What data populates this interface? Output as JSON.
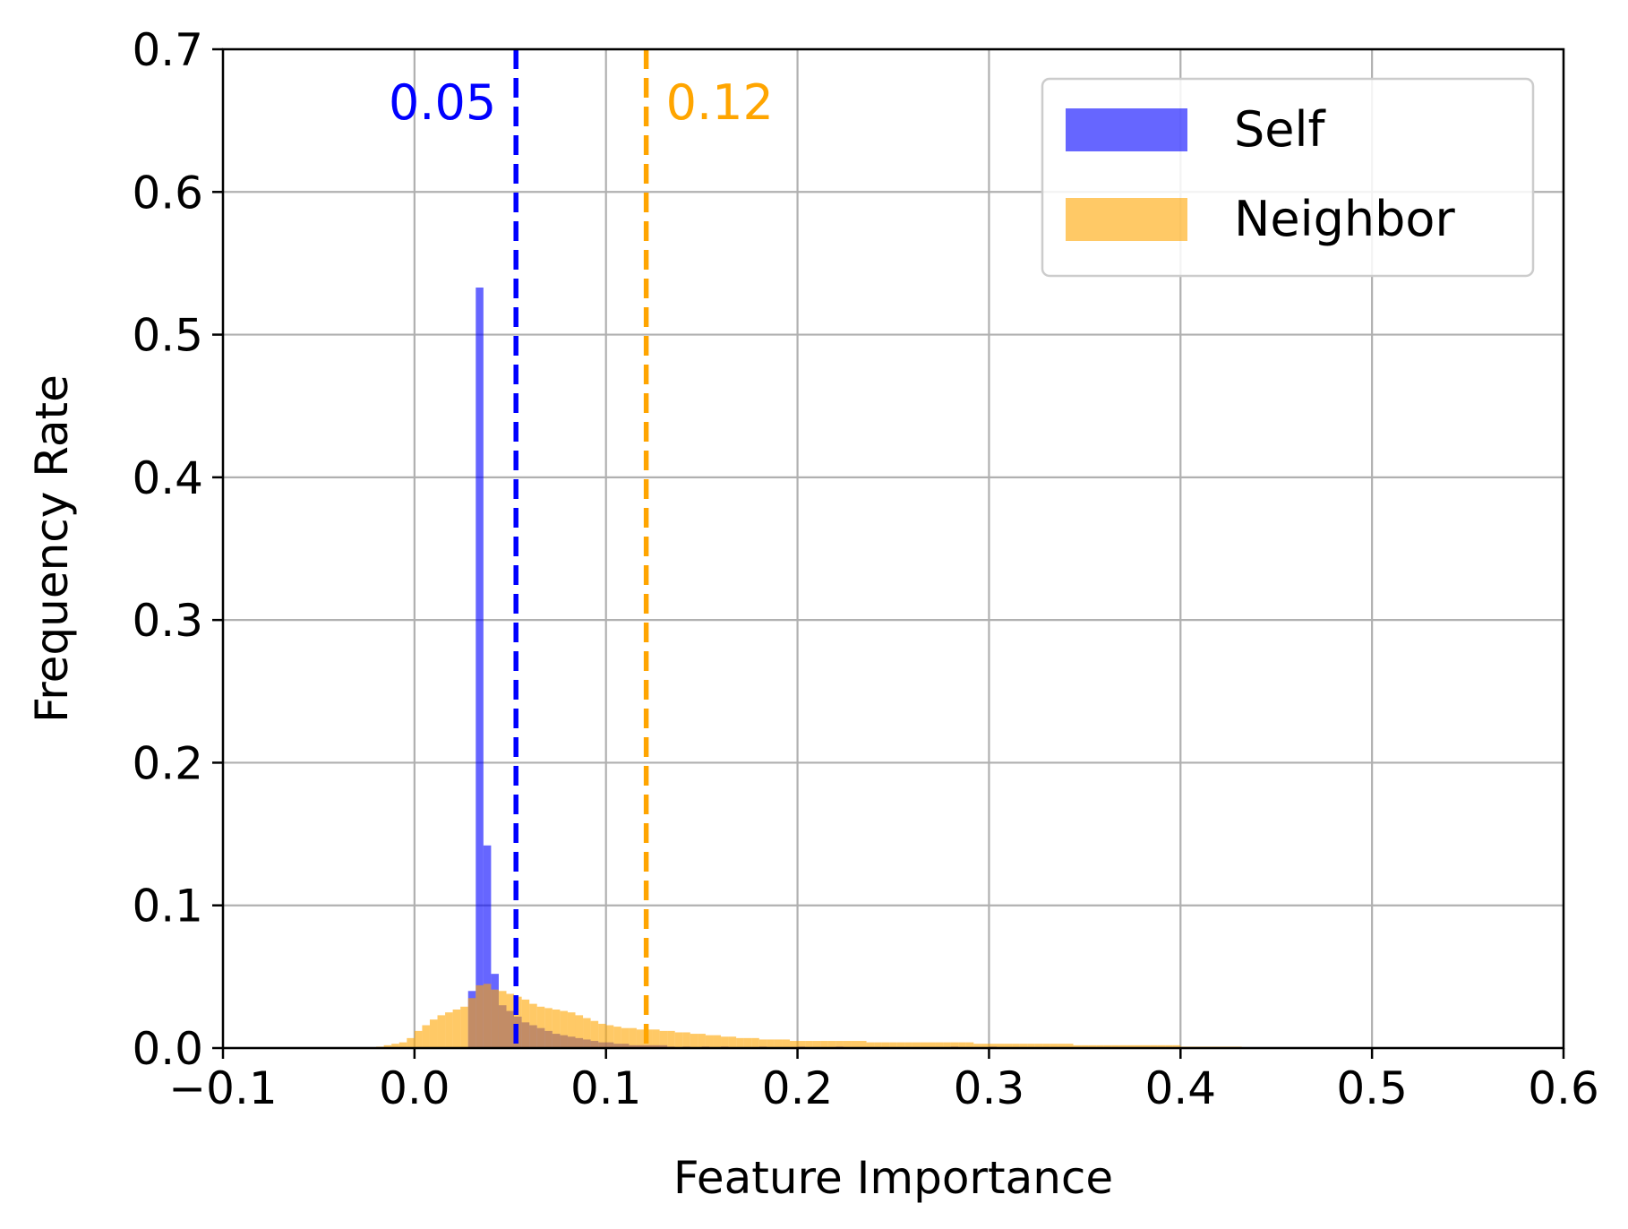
{
  "chart_data": {
    "type": "histogram",
    "title": "",
    "xlabel": "Feature Importance",
    "ylabel": "Frequency Rate",
    "xlim": [
      -0.1,
      0.6
    ],
    "ylim": [
      0,
      0.7
    ],
    "xticks": [
      -0.1,
      0.0,
      0.1,
      0.2,
      0.3,
      0.4,
      0.5,
      0.6
    ],
    "xtick_labels": [
      "−0.1",
      "0.0",
      "0.1",
      "0.2",
      "0.3",
      "0.4",
      "0.5",
      "0.6"
    ],
    "yticks": [
      0.0,
      0.1,
      0.2,
      0.3,
      0.4,
      0.5,
      0.6,
      0.7
    ],
    "ytick_labels": [
      "0.0",
      "0.1",
      "0.2",
      "0.3",
      "0.4",
      "0.5",
      "0.6",
      "0.7"
    ],
    "grid": true,
    "legend_position": "top-right",
    "bin_width": 0.004,
    "series": [
      {
        "name": "Self",
        "color": "#0000ff",
        "opacity": 0.6,
        "bins": [
          [
            0.028,
            0.04
          ],
          [
            0.032,
            0.533
          ],
          [
            0.036,
            0.142
          ],
          [
            0.04,
            0.052
          ],
          [
            0.044,
            0.03
          ],
          [
            0.048,
            0.026
          ],
          [
            0.052,
            0.022
          ],
          [
            0.056,
            0.018
          ],
          [
            0.06,
            0.016
          ],
          [
            0.064,
            0.014
          ],
          [
            0.068,
            0.012
          ],
          [
            0.072,
            0.01
          ],
          [
            0.076,
            0.009
          ],
          [
            0.08,
            0.008
          ],
          [
            0.084,
            0.007
          ],
          [
            0.088,
            0.006
          ],
          [
            0.092,
            0.005
          ],
          [
            0.096,
            0.004
          ],
          [
            0.1,
            0.004
          ],
          [
            0.104,
            0.003
          ],
          [
            0.108,
            0.003
          ],
          [
            0.112,
            0.002
          ],
          [
            0.116,
            0.002
          ],
          [
            0.12,
            0.002
          ],
          [
            0.124,
            0.002
          ],
          [
            0.128,
            0.002
          ],
          [
            0.132,
            0.001
          ],
          [
            0.14,
            0.001
          ],
          [
            0.15,
            0.001
          ],
          [
            0.16,
            0.001
          ],
          [
            0.18,
            0.001
          ],
          [
            0.2,
            0.001
          ],
          [
            0.22,
            0.001
          ],
          [
            0.28,
            0.001
          ],
          [
            0.3,
            0.001
          ],
          [
            0.4,
            0.0005
          ]
        ]
      },
      {
        "name": "Neighbor",
        "color": "#ffa500",
        "opacity": 0.6,
        "bins": [
          [
            -0.02,
            0.001
          ],
          [
            -0.016,
            0.002
          ],
          [
            -0.012,
            0.003
          ],
          [
            -0.008,
            0.004
          ],
          [
            -0.004,
            0.007
          ],
          [
            0.0,
            0.012
          ],
          [
            0.004,
            0.016
          ],
          [
            0.008,
            0.02
          ],
          [
            0.012,
            0.023
          ],
          [
            0.016,
            0.025
          ],
          [
            0.02,
            0.027
          ],
          [
            0.024,
            0.029
          ],
          [
            0.028,
            0.035
          ],
          [
            0.032,
            0.044
          ],
          [
            0.036,
            0.045
          ],
          [
            0.04,
            0.041
          ],
          [
            0.044,
            0.04
          ],
          [
            0.048,
            0.038
          ],
          [
            0.052,
            0.036
          ],
          [
            0.056,
            0.034
          ],
          [
            0.06,
            0.031
          ],
          [
            0.064,
            0.029
          ],
          [
            0.068,
            0.028
          ],
          [
            0.072,
            0.027
          ],
          [
            0.076,
            0.026
          ],
          [
            0.08,
            0.025
          ],
          [
            0.084,
            0.023
          ],
          [
            0.088,
            0.021
          ],
          [
            0.092,
            0.019
          ],
          [
            0.096,
            0.017
          ],
          [
            0.1,
            0.016
          ],
          [
            0.104,
            0.015
          ],
          [
            0.108,
            0.014
          ],
          [
            0.112,
            0.014
          ],
          [
            0.116,
            0.013
          ],
          [
            0.12,
            0.013
          ],
          [
            0.124,
            0.013
          ],
          [
            0.128,
            0.012
          ],
          [
            0.132,
            0.012
          ],
          [
            0.136,
            0.011
          ],
          [
            0.14,
            0.011
          ],
          [
            0.144,
            0.01
          ],
          [
            0.148,
            0.01
          ],
          [
            0.152,
            0.009
          ],
          [
            0.156,
            0.009
          ],
          [
            0.16,
            0.008
          ],
          [
            0.164,
            0.008
          ],
          [
            0.168,
            0.007
          ],
          [
            0.172,
            0.007
          ],
          [
            0.176,
            0.007
          ],
          [
            0.18,
            0.006
          ],
          [
            0.184,
            0.006
          ],
          [
            0.188,
            0.006
          ],
          [
            0.192,
            0.006
          ],
          [
            0.196,
            0.005
          ],
          [
            0.2,
            0.005
          ],
          [
            0.204,
            0.005
          ],
          [
            0.208,
            0.005
          ],
          [
            0.212,
            0.005
          ],
          [
            0.216,
            0.005
          ],
          [
            0.22,
            0.005
          ],
          [
            0.224,
            0.005
          ],
          [
            0.228,
            0.005
          ],
          [
            0.232,
            0.005
          ],
          [
            0.236,
            0.004
          ],
          [
            0.24,
            0.004
          ],
          [
            0.244,
            0.004
          ],
          [
            0.248,
            0.004
          ],
          [
            0.252,
            0.004
          ],
          [
            0.256,
            0.004
          ],
          [
            0.26,
            0.004
          ],
          [
            0.264,
            0.004
          ],
          [
            0.268,
            0.004
          ],
          [
            0.272,
            0.004
          ],
          [
            0.276,
            0.004
          ],
          [
            0.28,
            0.004
          ],
          [
            0.284,
            0.004
          ],
          [
            0.288,
            0.004
          ],
          [
            0.292,
            0.003
          ],
          [
            0.296,
            0.003
          ],
          [
            0.3,
            0.003
          ],
          [
            0.304,
            0.003
          ],
          [
            0.308,
            0.003
          ],
          [
            0.312,
            0.003
          ],
          [
            0.316,
            0.003
          ],
          [
            0.32,
            0.003
          ],
          [
            0.324,
            0.003
          ],
          [
            0.328,
            0.003
          ],
          [
            0.332,
            0.003
          ],
          [
            0.336,
            0.003
          ],
          [
            0.34,
            0.003
          ],
          [
            0.344,
            0.002
          ],
          [
            0.348,
            0.002
          ],
          [
            0.352,
            0.002
          ],
          [
            0.356,
            0.002
          ],
          [
            0.36,
            0.002
          ],
          [
            0.364,
            0.002
          ],
          [
            0.368,
            0.002
          ],
          [
            0.372,
            0.002
          ],
          [
            0.376,
            0.002
          ],
          [
            0.38,
            0.002
          ],
          [
            0.384,
            0.002
          ],
          [
            0.388,
            0.002
          ],
          [
            0.392,
            0.002
          ],
          [
            0.396,
            0.002
          ],
          [
            0.4,
            0.001
          ],
          [
            0.404,
            0.001
          ],
          [
            0.408,
            0.001
          ],
          [
            0.412,
            0.001
          ],
          [
            0.416,
            0.001
          ],
          [
            0.42,
            0.001
          ],
          [
            0.424,
            0.001
          ],
          [
            0.428,
            0.001
          ],
          [
            0.432,
            0.0005
          ],
          [
            0.44,
            0.0005
          ],
          [
            0.5,
            0.0005
          ],
          [
            0.512,
            0.0005
          ]
        ]
      }
    ],
    "mean_lines": [
      {
        "series": "Self",
        "x": 0.053,
        "label": "0.05",
        "color": "#0000ff"
      },
      {
        "series": "Neighbor",
        "x": 0.121,
        "label": "0.12",
        "color": "#ffa500"
      }
    ]
  }
}
